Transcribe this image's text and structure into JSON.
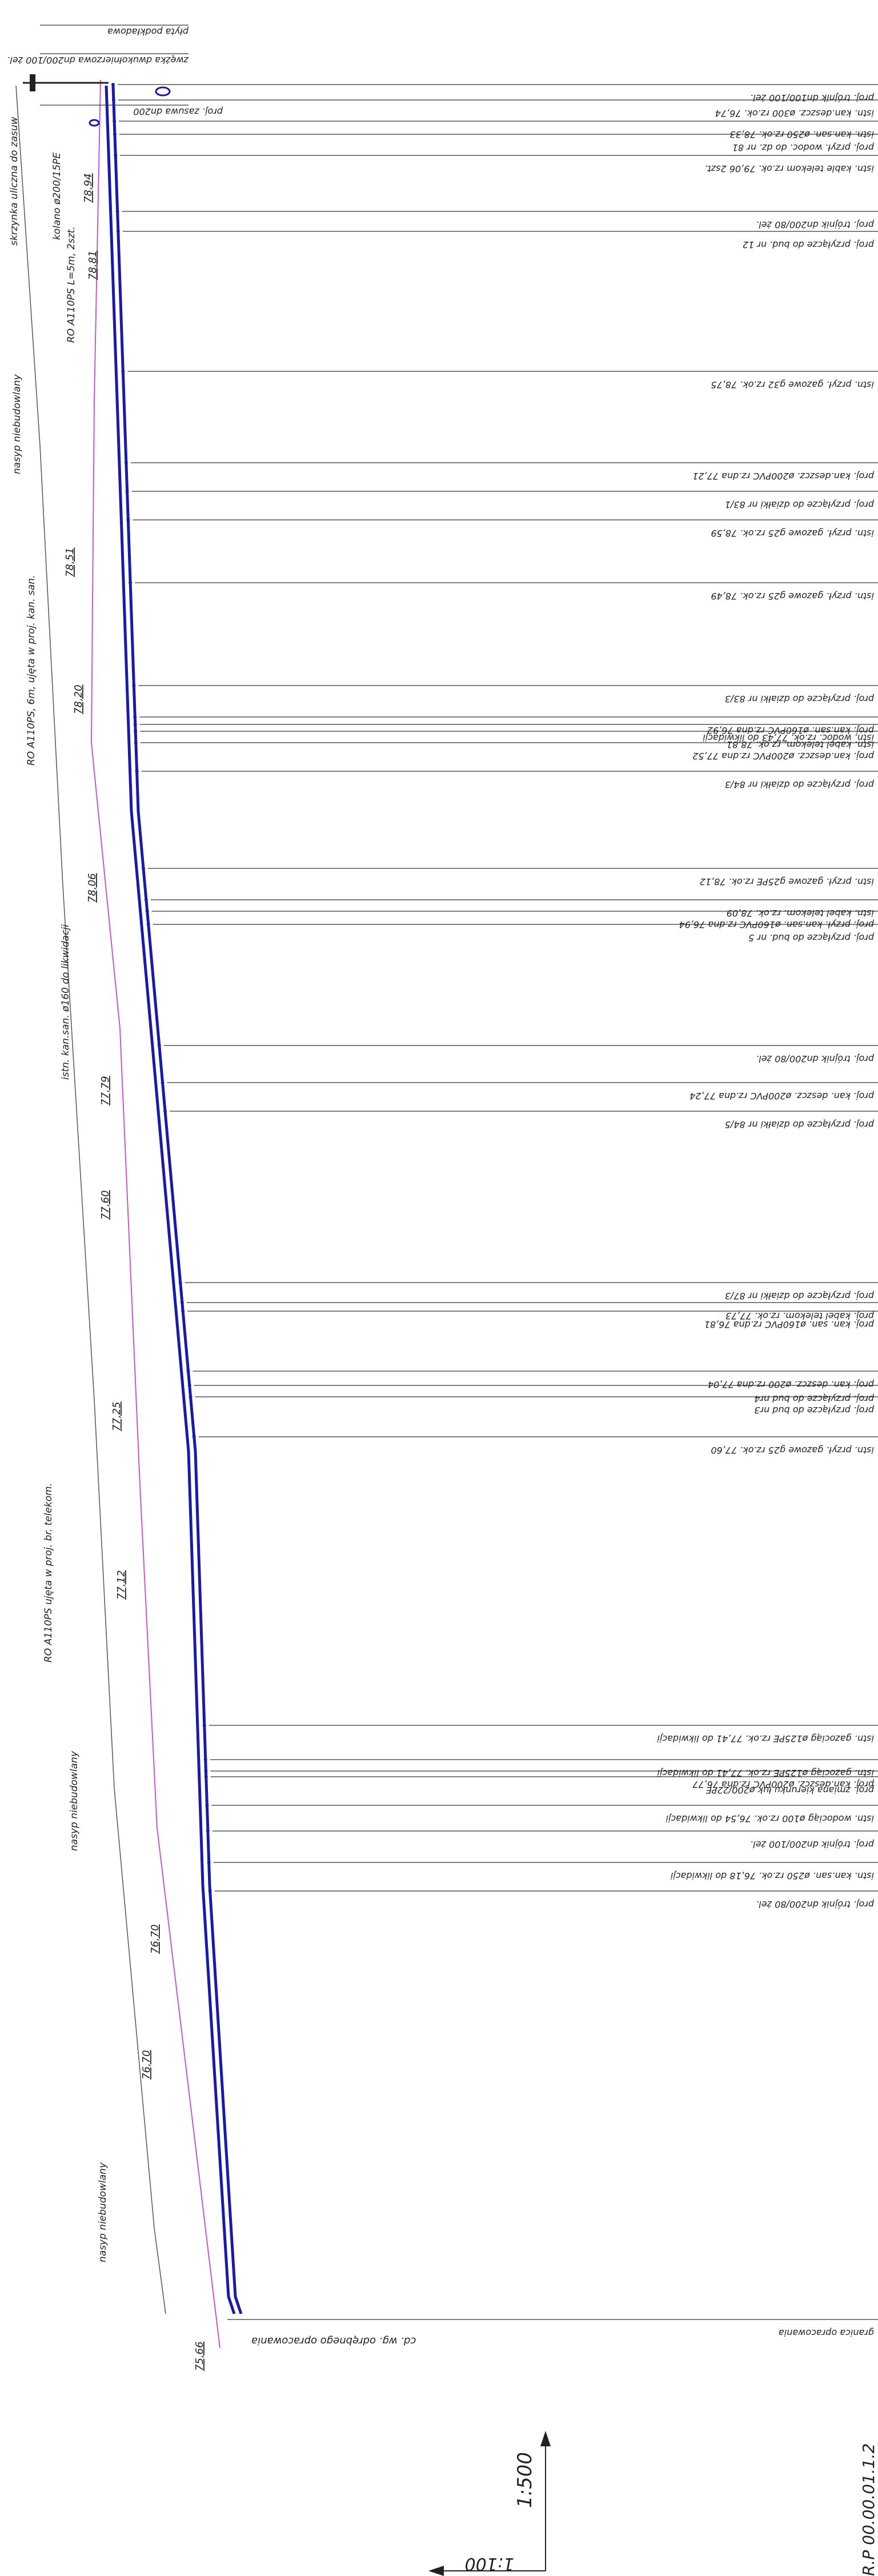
{
  "right_labels": [
    "proj. trójnik dn100/100 żel.",
    "istn. kan.deszcz. ø300 rz.ok. 76,74",
    "istn. kan.san. ø250 rz.ok. 78,33",
    "proj. przył. wodoc. do dz. nr 81",
    "istn. kable telekom rz.ok. 79,06 2szt.",
    "proj. trójnik dn200/80 żel.",
    "proj. przyłącze do bud. nr 12",
    "istn. przył. gazowe g32 rz.ok. 78,75",
    "proj. kan.deszcz. ø200PVC rz.dna 77,21",
    "proj. przyłącze do działki nr 83/1",
    "istn. przył. gazowe g25 rz.ok. 78,59",
    "istn. przył. gazowe g25 rz.ok. 78,49",
    "proj. przyłącze do działki nr 83/3",
    "proj. kan.san. ø160PVC rz.dna 76,92",
    "istn. wodoc. rz.ok. 77,43 do likwidacji",
    "istn. kabel telekom. rz.ok. 78,81",
    "proj. kan.deszcz. ø200PVC rz.dna 77,52",
    "proj. przyłącze do działki nr 84/3",
    "istn. przył. gazowe g25PE rz.ok. 78,12",
    "istn. kabel telekom. rz.ok. 78,09",
    "proj. przył. kan.san. ø160PVC rz.dna 76,94",
    "proj. przyłącze do bud. nr 5",
    "proj. trójnik dn200/80 żel.",
    "proj. kan. deszcz. ø200PVC rz.dna 77,24",
    "proj. przyłącze do działki nr 84/5",
    "proj. przyłącze do działki nr 87/3",
    "proj. kabel telekom. rz.ok. 77,73",
    "proj. kan. san. ø160PVC rz.dna 76,81",
    "proj. kan. deszcz. ø200 rz.dna 77,04",
    "proj. przyłącze do bud nr4",
    "proj. przyłącze do bud nr3",
    "istn. przył. gazowe g25 rz.ok. 77,60",
    "istn. gazociąg ø125PE rz.ok. 77,41 do likwidacji",
    "istn. gazociąg ø125PE rz.ok. 77,41 do likwidacji",
    "proj. kan.deszcz. ø200PVC rz.dna 76,77",
    "proj. zmiana kierunku łuk ø200/22PE",
    "istn. wodociąg ø100 rz.ok. 76,54 do likwidacji",
    "proj. trójnik dn200/100 żel.",
    "istn. kan.san. ø250 rz.ok. 76,18 do likwidacji",
    "proj. trójnik dn200/80 żel.",
    "granica opracowania"
  ],
  "top_notes": [
    "płyta podkładowa",
    "zwężka dwukołnierzowa dn200/100 żel.",
    "proj. zasuwa dn200"
  ],
  "left_notes": [
    "skrzynka uliczna do zasuw",
    "kolano ø200/15PE",
    "RO A110PS L=5m, 2szt.",
    "nasyp niebudowlany",
    "RO A110PS, 6m, ujęta w proj. kan. san.",
    "istn. kan.san. ø160 do likwidacji",
    "RO A110PS ujęta w proj. br. telekom.",
    "nasyp niebudowlany",
    "nasyp niebudowlany"
  ],
  "elevations": [
    "78,94",
    "78,81",
    "78,51",
    "78,20",
    "78,06",
    "77,79",
    "77,60",
    "77,25",
    "77,12",
    "76,70",
    "76,70",
    "75,66"
  ],
  "bottom_note": "cd. wg. odrębnego opracowania",
  "scale_v": "1:500",
  "scale_h": "1:100",
  "sheet_mark": "R.P 00.00.01.1.2",
  "colors": {
    "pipe": "#1a1aa8",
    "terrain": "#cc55cc",
    "lines": "#333333"
  }
}
